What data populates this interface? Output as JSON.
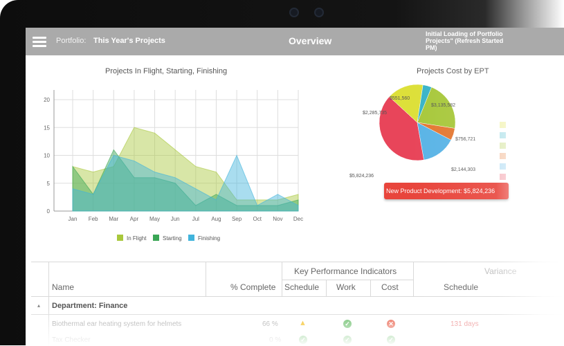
{
  "header": {
    "portfolio_label": "Portfolio:",
    "portfolio_name": "This Year's Projects",
    "page_title": "Overview",
    "status_text": "Initial Loading of Portfolio\nProjects\" (Refresh Started\nPM)"
  },
  "colors": {
    "in_flight": "#a8c83c",
    "starting": "#3aa655",
    "finishing": "#41b4dc",
    "header_bg": "#aaaaaa",
    "tooltip": "#e8453c"
  },
  "line_chart": {
    "title": "Projects In Flight, Starting, Finishing",
    "chart_data": {
      "type": "area",
      "categories": [
        "Jan",
        "Feb",
        "Mar",
        "Apr",
        "May",
        "Jun",
        "Jul",
        "Aug",
        "Sep",
        "Oct",
        "Nov",
        "Dec"
      ],
      "ylim": [
        0,
        20
      ],
      "yticks": [
        0,
        5,
        10,
        15,
        20
      ],
      "grid": true,
      "legend_position": "bottom",
      "series": [
        {
          "name": "In Flight",
          "values": [
            8,
            7,
            8,
            15,
            14,
            11,
            8,
            7,
            2,
            2,
            2,
            3
          ]
        },
        {
          "name": "Starting",
          "values": [
            8,
            3,
            11,
            6,
            6,
            5,
            1,
            3,
            1,
            1,
            1,
            2
          ]
        },
        {
          "name": "Finishing",
          "values": [
            4,
            3,
            10,
            9,
            7,
            6,
            4,
            2,
            10,
            1,
            3,
            1
          ]
        }
      ]
    }
  },
  "pie_chart": {
    "title": "Projects Cost by EPT",
    "chart_data": {
      "type": "pie",
      "values": [
        2285735,
        551560,
        3135582,
        756721,
        2144303,
        5824236
      ],
      "labels": [
        "$2,285,735",
        "$551,560",
        "$3,135,582",
        "$756,721",
        "$2,144,303",
        "$5,824,236"
      ],
      "colors": [
        "#dde03a",
        "#3ab4c8",
        "#a8c83c",
        "#e47832",
        "#5ab4e6",
        "#e8455a"
      ]
    },
    "tooltip": "New Product Development: $5,824,236"
  },
  "table": {
    "group_header": "Key Performance Indicators",
    "variance_header": "Variance",
    "columns": [
      "Name",
      "% Complete",
      "Schedule",
      "Work",
      "Cost",
      "Schedule"
    ],
    "department": "Department: Finance",
    "rows": [
      {
        "name": "Biothermal ear heating system for helmets",
        "complete": "66 %",
        "variance": "131 days"
      },
      {
        "name": "Tax Checker",
        "complete": "0 %",
        "variance": ""
      }
    ]
  }
}
